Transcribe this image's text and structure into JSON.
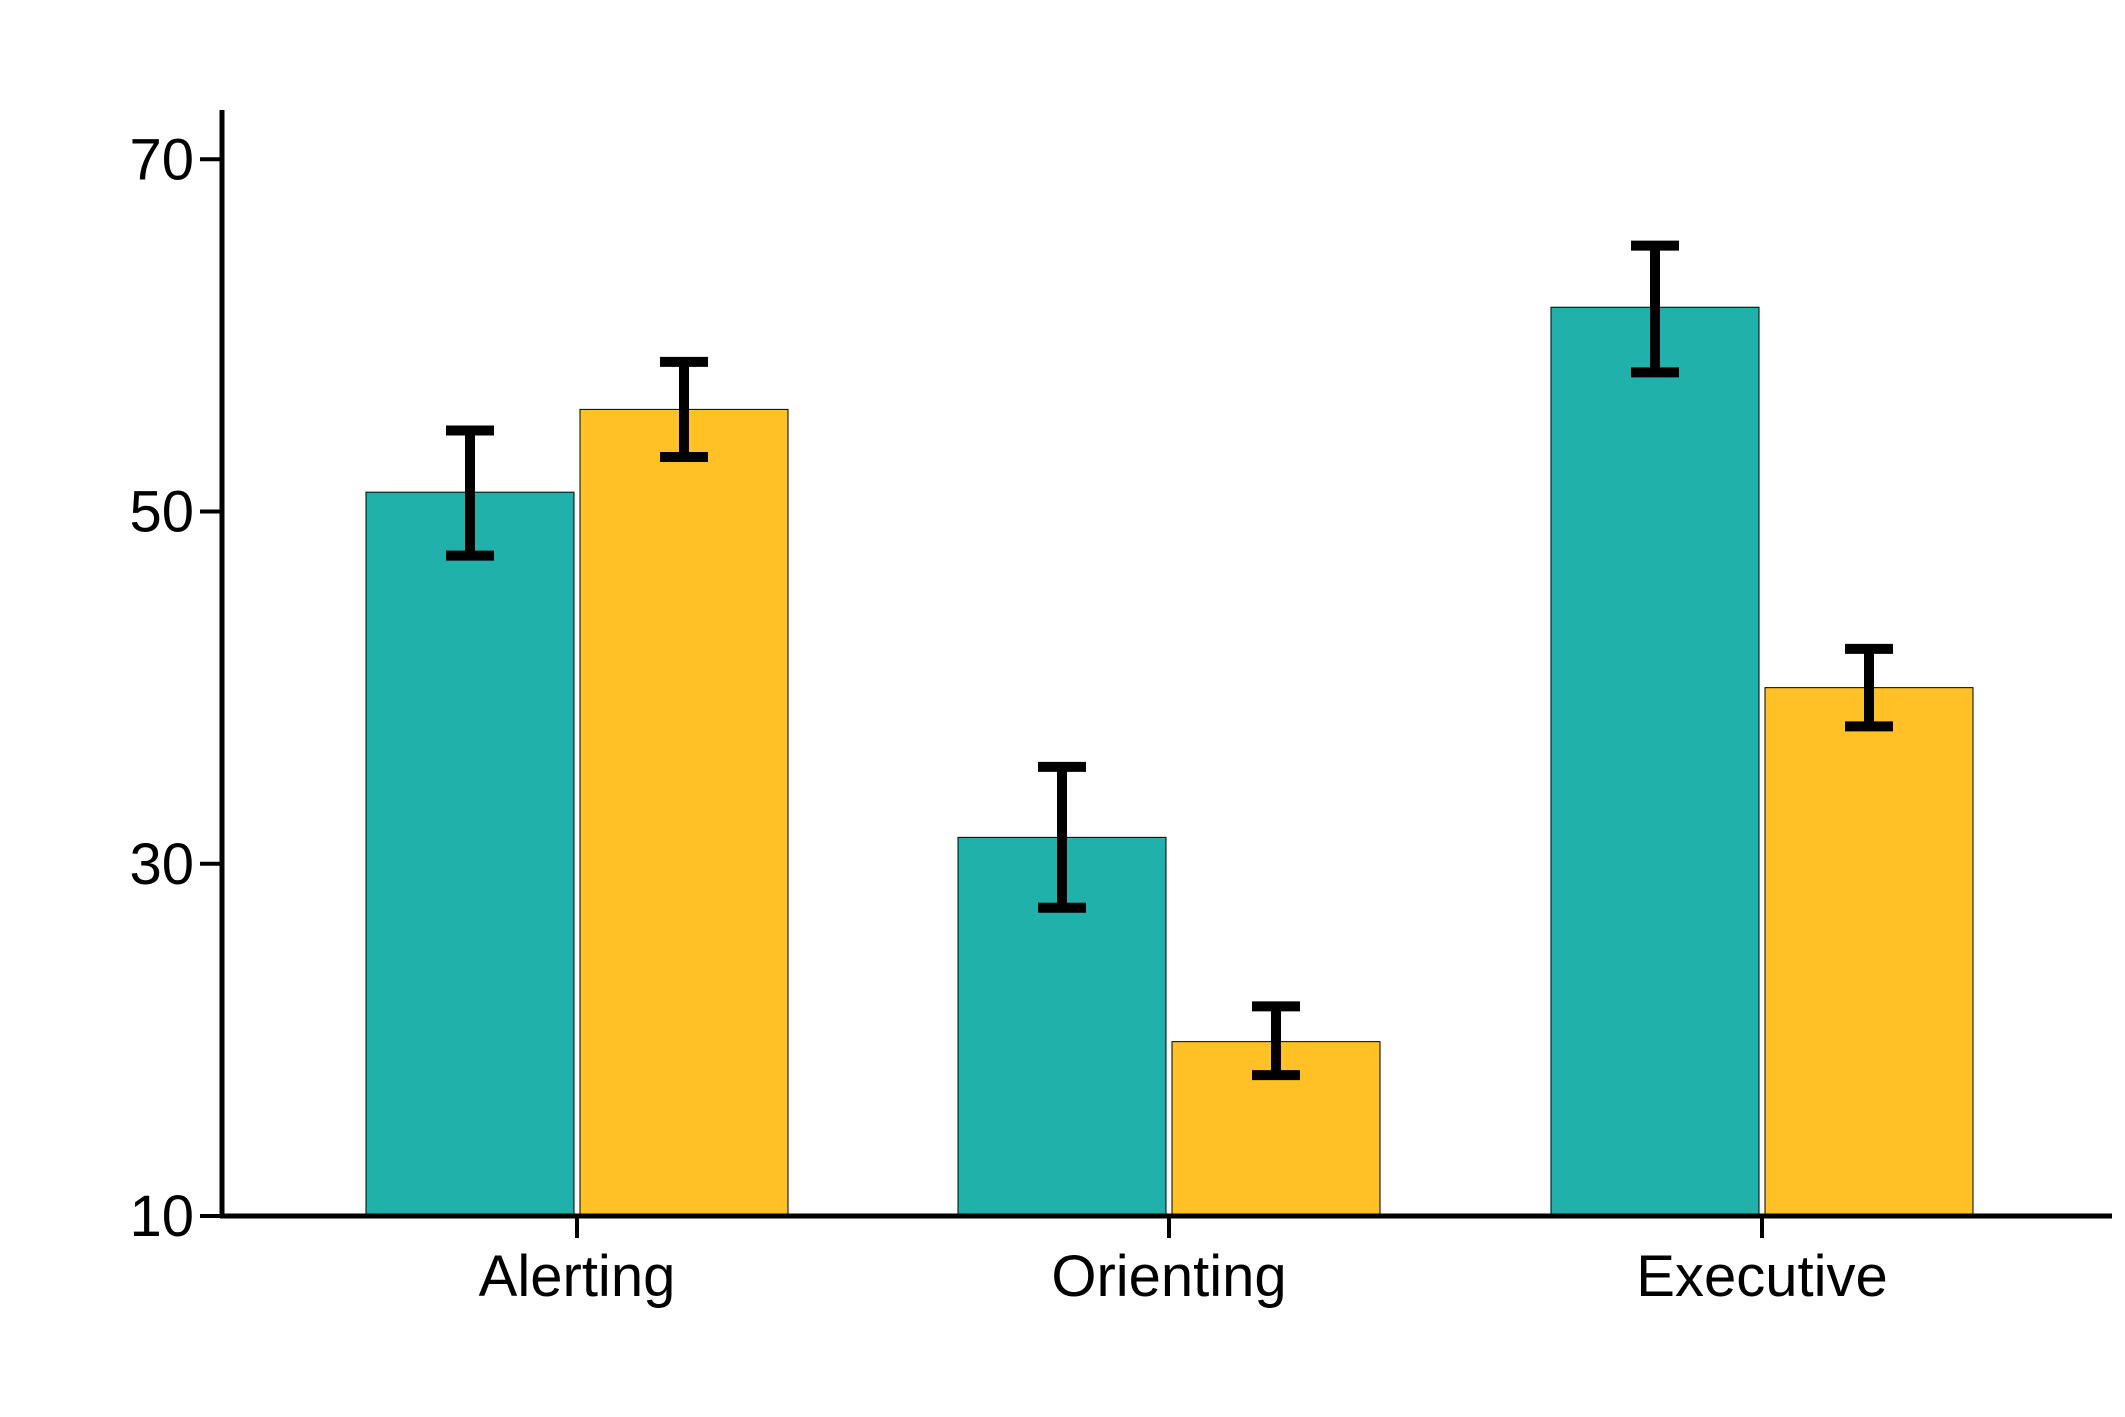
{
  "chart_data": {
    "type": "bar",
    "title": "",
    "xlabel": "",
    "ylabel": "",
    "categories": [
      "Alerting",
      "Orienting",
      "Executive"
    ],
    "yticks": [
      10,
      30,
      50,
      70
    ],
    "ytick_labels": [
      "10",
      "30",
      "50",
      "70"
    ],
    "ylim": [
      10,
      72.8
    ],
    "grid": false,
    "legend": "none",
    "series": [
      {
        "color": "#20B2AA",
        "values": [
          51.1,
          31.5,
          61.6
        ],
        "error_low": [
          47.5,
          27.5,
          57.9
        ],
        "error_high": [
          54.6,
          35.5,
          65.1
        ]
      },
      {
        "color": "#FFC125",
        "values": [
          55.8,
          19.9,
          40.0
        ],
        "error_low": [
          53.1,
          18.0,
          37.8
        ],
        "error_high": [
          58.5,
          21.9,
          42.2
        ]
      }
    ]
  }
}
